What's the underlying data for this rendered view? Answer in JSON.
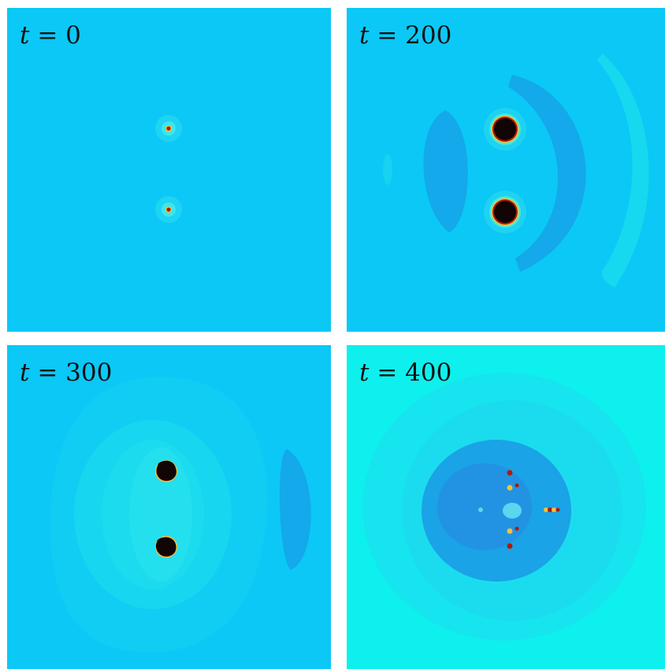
{
  "colors": {
    "background_field": "#0bc8f6",
    "field_t400": "#0ef0ee",
    "halo": "#32e5ee",
    "dark_wave": "#13a9ea",
    "light_wave": "#16d8ef",
    "core_black": "#120505",
    "core_red": "#b01a0a",
    "core_yellow": "#f2c23a"
  },
  "panels": [
    {
      "var": "t",
      "eq": "= 0"
    },
    {
      "var": "t",
      "eq": "= 200"
    },
    {
      "var": "t",
      "eq": "= 300"
    },
    {
      "var": "t",
      "eq": "= 400"
    }
  ]
}
